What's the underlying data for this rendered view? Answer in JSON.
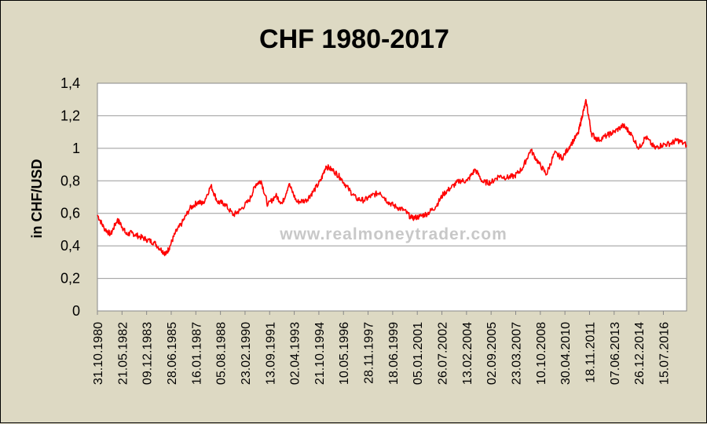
{
  "chart_data": {
    "type": "line",
    "title": "CHF 1980-2017",
    "ylabel": "in CHF/USD",
    "xlabel": "",
    "watermark": "www.realmoneytrader.com",
    "ylim": [
      0,
      1.4
    ],
    "yticks": [
      "0",
      "0,2",
      "0,4",
      "0,6",
      "0,8",
      "1",
      "1,2",
      "1,4"
    ],
    "xlim": [
      "31.10.1980",
      "01.01.2018"
    ],
    "xticks": [
      "31.10.1980",
      "21.05.1982",
      "09.12.1983",
      "28.06.1985",
      "16.01.1987",
      "05.08.1988",
      "23.02.1990",
      "13.09.1991",
      "02.04.1993",
      "21.10.1994",
      "10.05.1996",
      "28.11.1997",
      "18.06.1999",
      "05.01.2001",
      "26.07.2002",
      "13.02.2004",
      "02.09.2005",
      "23.03.2007",
      "10.10.2008",
      "30.04.2010",
      "18.11.2011",
      "07.06.2013",
      "26.12.2014",
      "15.07.2016"
    ],
    "grid": true,
    "legend": "none",
    "line_color": "#ff0000",
    "series": [
      {
        "x": [
          "31.10.1980",
          "01.04.1981",
          "01.09.1981",
          "01.02.1982",
          "01.05.1982",
          "01.09.1982",
          "01.01.1983",
          "01.06.1983",
          "01.12.1983",
          "01.06.1984",
          "01.12.1984",
          "01.03.1985",
          "01.06.1985",
          "01.10.1985",
          "01.03.1986",
          "01.09.1986",
          "01.03.1987",
          "01.07.1987",
          "01.01.1988",
          "01.06.1988",
          "01.11.1988",
          "01.06.1989",
          "01.11.1989",
          "01.06.1990",
          "01.11.1990",
          "01.03.1991",
          "01.08.1991",
          "01.02.1992",
          "01.07.1992",
          "01.12.1992",
          "01.06.1993",
          "01.01.1994",
          "01.06.1994",
          "01.12.1994",
          "01.04.1995",
          "01.10.1995",
          "01.03.1996",
          "01.09.1996",
          "01.03.1997",
          "01.09.1997",
          "01.03.1998",
          "01.09.1998",
          "01.03.1999",
          "01.09.1999",
          "01.03.2000",
          "01.09.2000",
          "01.03.2001",
          "01.09.2001",
          "01.03.2002",
          "01.09.2002",
          "01.03.2003",
          "01.09.2003",
          "01.03.2004",
          "01.09.2004",
          "01.03.2005",
          "01.09.2005",
          "01.03.2006",
          "01.09.2006",
          "01.03.2007",
          "01.09.2007",
          "01.03.2008",
          "01.09.2008",
          "01.03.2009",
          "01.09.2009",
          "01.03.2010",
          "01.09.2010",
          "01.03.2011",
          "01.06.2011",
          "01.09.2011",
          "01.01.2012",
          "01.06.2012",
          "01.01.2013",
          "01.06.2013",
          "01.01.2014",
          "01.06.2014",
          "01.01.2015",
          "01.06.2015",
          "01.01.2016",
          "01.06.2016",
          "01.01.2017",
          "01.06.2017",
          "31.12.2017"
        ],
        "y": [
          0.59,
          0.51,
          0.47,
          0.56,
          0.53,
          0.47,
          0.48,
          0.46,
          0.44,
          0.42,
          0.37,
          0.35,
          0.4,
          0.48,
          0.54,
          0.63,
          0.67,
          0.66,
          0.77,
          0.67,
          0.66,
          0.59,
          0.62,
          0.68,
          0.78,
          0.8,
          0.65,
          0.71,
          0.66,
          0.78,
          0.67,
          0.68,
          0.73,
          0.8,
          0.89,
          0.86,
          0.82,
          0.75,
          0.69,
          0.68,
          0.71,
          0.73,
          0.67,
          0.64,
          0.62,
          0.57,
          0.58,
          0.6,
          0.64,
          0.72,
          0.76,
          0.8,
          0.8,
          0.87,
          0.79,
          0.79,
          0.83,
          0.82,
          0.83,
          0.88,
          0.99,
          0.91,
          0.84,
          0.97,
          0.94,
          1.02,
          1.09,
          1.2,
          1.29,
          1.09,
          1.05,
          1.08,
          1.1,
          1.14,
          1.1,
          1.0,
          1.07,
          1.0,
          1.02,
          1.03,
          1.05,
          1.02
        ]
      }
    ]
  }
}
